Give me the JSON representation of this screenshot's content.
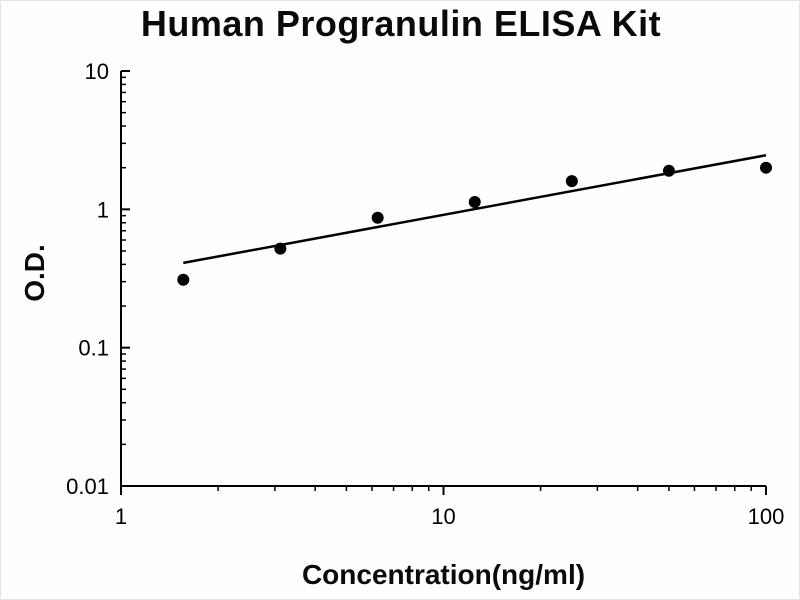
{
  "title": "Human Progranulin ELISA Kit",
  "chart_data": {
    "type": "scatter",
    "title": "Human Progranulin ELISA Kit",
    "xlabel": "Concentration(ng/ml)",
    "ylabel": "O.D.",
    "x_scale": "log",
    "y_scale": "log",
    "xlim": [
      1,
      100
    ],
    "ylim": [
      0.01,
      10
    ],
    "x_ticks": [
      1,
      10,
      100
    ],
    "y_ticks": [
      10,
      1,
      0.1,
      0.01
    ],
    "grid": false,
    "legend": "none",
    "point_color": "#000000",
    "line_color": "#000000",
    "axis_color": "#000000",
    "points": {
      "x": [
        1.56,
        3.12,
        6.25,
        12.5,
        25,
        50,
        100
      ],
      "y": [
        0.31,
        0.52,
        0.87,
        1.13,
        1.6,
        1.9,
        2.0
      ]
    },
    "trendline": {
      "x": [
        1.56,
        100
      ],
      "y": [
        0.41,
        2.46
      ]
    }
  }
}
